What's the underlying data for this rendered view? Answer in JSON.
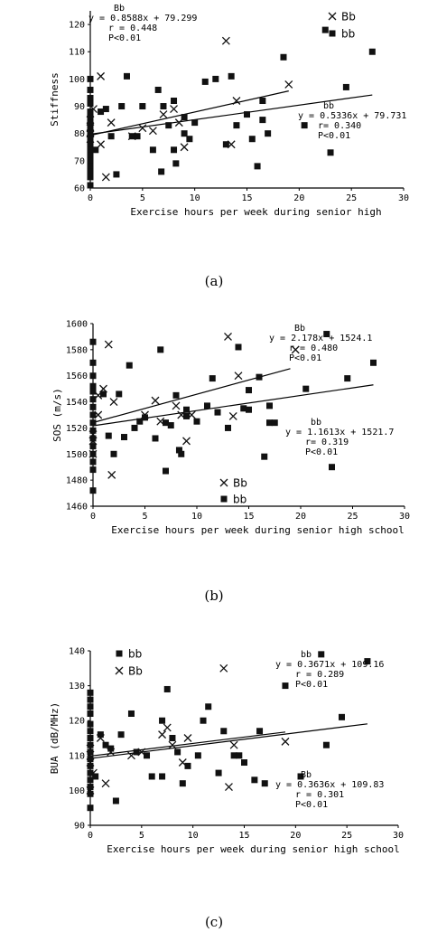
{
  "chart_data": [
    {
      "type": "scatter",
      "caption": "(a)",
      "xlabel": "Exercise hours per week during senior high",
      "ylabel": "Stiffness",
      "xlim": [
        0,
        30
      ],
      "ylim": [
        60,
        125
      ],
      "xticks": [
        "0",
        "5",
        "10",
        "15",
        "20",
        "25",
        "30"
      ],
      "yticks": [
        "60",
        "70",
        "80",
        "90",
        "100",
        "110",
        "120"
      ],
      "legend": {
        "position": "top-right",
        "entries": [
          {
            "marker": "x",
            "name": "Bb"
          },
          {
            "marker": "square",
            "name": "bb"
          }
        ]
      },
      "regression": [
        {
          "series": "Bb",
          "name": "Bb",
          "equation": "y = 0.8588x + 79.299",
          "r": "r = 0.448",
          "p": "P<0.01",
          "slope": 0.8588,
          "intercept": 79.299,
          "x_range": [
            0,
            19
          ]
        },
        {
          "series": "bb",
          "name": "bb",
          "equation": "y = 0.5336x + 79.731",
          "r": "r= 0.340",
          "p": "P<0.01",
          "slope": 0.5336,
          "intercept": 79.731,
          "x_range": [
            0,
            27
          ]
        }
      ],
      "series": [
        {
          "name": "Bb",
          "marker": "x",
          "points": [
            [
              0,
              80
            ],
            [
              0,
              78
            ],
            [
              0,
              82
            ],
            [
              0,
              85
            ],
            [
              0.3,
              89
            ],
            [
              1,
              101
            ],
            [
              1,
              76
            ],
            [
              1.5,
              64
            ],
            [
              2,
              84
            ],
            [
              4,
              79
            ],
            [
              5,
              82
            ],
            [
              6,
              81
            ],
            [
              7,
              87
            ],
            [
              8,
              89
            ],
            [
              8.5,
              84
            ],
            [
              9,
              75
            ],
            [
              13,
              114
            ],
            [
              13.5,
              76
            ],
            [
              14,
              92
            ],
            [
              19,
              98
            ]
          ]
        },
        {
          "name": "bb",
          "marker": "square",
          "points": [
            [
              0,
              100
            ],
            [
              0,
              96
            ],
            [
              0,
              93
            ],
            [
              0,
              91
            ],
            [
              0,
              88
            ],
            [
              0,
              86
            ],
            [
              0,
              84
            ],
            [
              0,
              82
            ],
            [
              0,
              80
            ],
            [
              0,
              78
            ],
            [
              0,
              76
            ],
            [
              0,
              74
            ],
            [
              0,
              72
            ],
            [
              0,
              70
            ],
            [
              0,
              68
            ],
            [
              0,
              66
            ],
            [
              0,
              64
            ],
            [
              0,
              61
            ],
            [
              0.5,
              74
            ],
            [
              1,
              88
            ],
            [
              1.5,
              89
            ],
            [
              2,
              79
            ],
            [
              2.5,
              65
            ],
            [
              3,
              90
            ],
            [
              3.5,
              101
            ],
            [
              4,
              79
            ],
            [
              4.5,
              79
            ],
            [
              5,
              90
            ],
            [
              6,
              74
            ],
            [
              6.5,
              96
            ],
            [
              6.8,
              66
            ],
            [
              7,
              90
            ],
            [
              7.5,
              83
            ],
            [
              8,
              92
            ],
            [
              8,
              74
            ],
            [
              8.2,
              69
            ],
            [
              9,
              80
            ],
            [
              9,
              86
            ],
            [
              9.5,
              78
            ],
            [
              10,
              84
            ],
            [
              11,
              99
            ],
            [
              12,
              100
            ],
            [
              13,
              76
            ],
            [
              13.5,
              101
            ],
            [
              14,
              83
            ],
            [
              15,
              87
            ],
            [
              15.5,
              78
            ],
            [
              16,
              68
            ],
            [
              16.5,
              92
            ],
            [
              16.5,
              85
            ],
            [
              17,
              80
            ],
            [
              18.5,
              108
            ],
            [
              20.5,
              83
            ],
            [
              22.5,
              118
            ],
            [
              23,
              73
            ],
            [
              24.5,
              97
            ],
            [
              27,
              110
            ]
          ]
        }
      ]
    },
    {
      "type": "scatter",
      "caption": "(b)",
      "xlabel": "Exercise hours per week during senior high school",
      "ylabel": "SOS (m/s)",
      "xlim": [
        0,
        30
      ],
      "ylim": [
        1460,
        1600
      ],
      "xticks": [
        "0",
        "5",
        "10",
        "15",
        "20",
        "25",
        "30"
      ],
      "yticks": [
        "1460",
        "1480",
        "1500",
        "1520",
        "1540",
        "1560",
        "1580",
        "1600"
      ],
      "legend": {
        "position": "bottom-center",
        "entries": [
          {
            "marker": "x",
            "name": "Bb"
          },
          {
            "marker": "square",
            "name": "bb"
          }
        ]
      },
      "regression": [
        {
          "series": "Bb",
          "name": "Bb",
          "equation": "y = 2.178x + 1524.1",
          "r": "r = 0.480",
          "p": "P<0.01",
          "slope": 2.178,
          "intercept": 1524.1,
          "x_range": [
            0,
            19
          ]
        },
        {
          "series": "bb",
          "name": "bb",
          "equation": "y = 1.1613x + 1521.7",
          "r": "r= 0.319",
          "p": "P<0.01",
          "slope": 1.1613,
          "intercept": 1521.7,
          "x_range": [
            0,
            27
          ]
        }
      ],
      "series": [
        {
          "name": "Bb",
          "marker": "x",
          "points": [
            [
              0,
              1500
            ],
            [
              0,
              1510
            ],
            [
              0,
              1515
            ],
            [
              0.5,
              1530
            ],
            [
              0.5,
              1545
            ],
            [
              1,
              1550
            ],
            [
              1.5,
              1584
            ],
            [
              1.8,
              1484
            ],
            [
              2,
              1540
            ],
            [
              5,
              1530
            ],
            [
              6,
              1541
            ],
            [
              6.5,
              1525
            ],
            [
              8,
              1537
            ],
            [
              8.5,
              1530
            ],
            [
              9,
              1510
            ],
            [
              9.5,
              1530
            ],
            [
              13,
              1590
            ],
            [
              13.5,
              1529
            ],
            [
              14,
              1560
            ],
            [
              19.5,
              1580
            ]
          ]
        },
        {
          "name": "bb",
          "marker": "square",
          "points": [
            [
              0,
              1586
            ],
            [
              0,
              1570
            ],
            [
              0,
              1560
            ],
            [
              0,
              1552
            ],
            [
              0,
              1548
            ],
            [
              0,
              1542
            ],
            [
              0,
              1536
            ],
            [
              0,
              1530
            ],
            [
              0,
              1524
            ],
            [
              0,
              1518
            ],
            [
              0,
              1512
            ],
            [
              0,
              1506
            ],
            [
              0,
              1500
            ],
            [
              0,
              1494
            ],
            [
              0,
              1488
            ],
            [
              0,
              1472
            ],
            [
              1,
              1546
            ],
            [
              1.5,
              1514
            ],
            [
              2,
              1500
            ],
            [
              2.5,
              1546
            ],
            [
              3,
              1513
            ],
            [
              3.5,
              1568
            ],
            [
              4,
              1520
            ],
            [
              4.5,
              1525
            ],
            [
              5,
              1528
            ],
            [
              6,
              1512
            ],
            [
              6.5,
              1580
            ],
            [
              7,
              1487
            ],
            [
              7,
              1524
            ],
            [
              7.5,
              1522
            ],
            [
              8,
              1545
            ],
            [
              8.3,
              1503
            ],
            [
              8.5,
              1500
            ],
            [
              9,
              1529
            ],
            [
              9,
              1534
            ],
            [
              10,
              1525
            ],
            [
              11,
              1537
            ],
            [
              11.5,
              1558
            ],
            [
              12,
              1532
            ],
            [
              13,
              1520
            ],
            [
              14,
              1582
            ],
            [
              14.5,
              1535
            ],
            [
              15,
              1549
            ],
            [
              15,
              1534
            ],
            [
              16,
              1559
            ],
            [
              16.5,
              1498
            ],
            [
              17,
              1537
            ],
            [
              17,
              1524
            ],
            [
              17.5,
              1524
            ],
            [
              20.5,
              1550
            ],
            [
              22.5,
              1592
            ],
            [
              23,
              1490
            ],
            [
              24.5,
              1558
            ],
            [
              27,
              1570
            ]
          ]
        }
      ]
    },
    {
      "type": "scatter",
      "caption": "(c)",
      "xlabel": "Exercise hours per week during senior high school",
      "ylabel": "BUA (dB/MHz)",
      "xlim": [
        0,
        30
      ],
      "ylim": [
        90,
        140
      ],
      "xticks": [
        "0",
        "5",
        "10",
        "15",
        "20",
        "25",
        "30"
      ],
      "yticks": [
        "90",
        "100",
        "110",
        "120",
        "130",
        "140"
      ],
      "legend": {
        "position": "top-left",
        "entries": [
          {
            "marker": "square",
            "name": "bb"
          },
          {
            "marker": "x",
            "name": "Bb"
          }
        ]
      },
      "regression": [
        {
          "series": "bb",
          "name": "bb",
          "equation": "y = 0.3671x + 109.16",
          "r": "r = 0.289",
          "p": "P<0.01",
          "slope": 0.3671,
          "intercept": 109.16,
          "x_range": [
            0,
            27
          ]
        },
        {
          "series": "Bb",
          "name": "Bb",
          "equation": "y = 0.3636x + 109.83",
          "r": "r = 0.301",
          "p": "P<0.01",
          "slope": 0.3636,
          "intercept": 109.83,
          "x_range": [
            0,
            19
          ]
        }
      ],
      "series": [
        {
          "name": "Bb",
          "marker": "x",
          "points": [
            [
              0,
              112
            ],
            [
              0,
              108
            ],
            [
              0,
              100
            ],
            [
              0.3,
              105
            ],
            [
              1,
              115
            ],
            [
              1.5,
              102
            ],
            [
              2,
              111
            ],
            [
              4,
              110
            ],
            [
              5,
              111
            ],
            [
              7,
              116
            ],
            [
              7.5,
              118
            ],
            [
              8,
              113
            ],
            [
              9,
              108
            ],
            [
              9.5,
              115
            ],
            [
              13,
              135
            ],
            [
              13.5,
              101
            ],
            [
              14,
              113
            ],
            [
              19,
              114
            ]
          ]
        },
        {
          "name": "bb",
          "marker": "square",
          "points": [
            [
              0,
              128
            ],
            [
              0,
              126
            ],
            [
              0,
              124
            ],
            [
              0,
              122
            ],
            [
              0,
              119
            ],
            [
              0,
              117
            ],
            [
              0,
              115
            ],
            [
              0,
              113
            ],
            [
              0,
              111
            ],
            [
              0,
              109
            ],
            [
              0,
              107
            ],
            [
              0,
              105
            ],
            [
              0,
              103
            ],
            [
              0,
              101
            ],
            [
              0,
              99
            ],
            [
              0,
              95
            ],
            [
              0.5,
              104
            ],
            [
              1,
              116
            ],
            [
              1.5,
              113
            ],
            [
              2,
              112
            ],
            [
              2.5,
              97
            ],
            [
              3,
              116
            ],
            [
              4,
              122
            ],
            [
              4.5,
              111
            ],
            [
              5.5,
              110
            ],
            [
              6,
              104
            ],
            [
              7,
              120
            ],
            [
              7,
              104
            ],
            [
              7.5,
              129
            ],
            [
              8,
              115
            ],
            [
              8.5,
              111
            ],
            [
              9,
              102
            ],
            [
              9.5,
              107
            ],
            [
              10.5,
              110
            ],
            [
              11,
              120
            ],
            [
              11.5,
              124
            ],
            [
              12.5,
              105
            ],
            [
              13,
              117
            ],
            [
              14,
              110
            ],
            [
              14.5,
              110
            ],
            [
              15,
              108
            ],
            [
              16,
              103
            ],
            [
              16.5,
              117
            ],
            [
              17,
              102
            ],
            [
              19,
              130
            ],
            [
              20.5,
              104
            ],
            [
              22.5,
              139
            ],
            [
              23,
              113
            ],
            [
              24.5,
              121
            ],
            [
              27,
              137
            ]
          ]
        }
      ]
    }
  ]
}
